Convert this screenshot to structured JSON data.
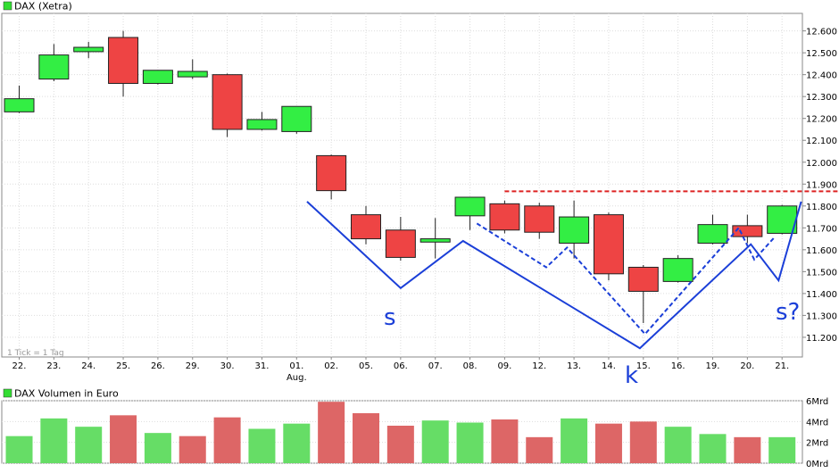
{
  "price_panel": {
    "title": "DAX (Xetra)",
    "note": "1 Tick = 1 Tag",
    "legend_color": "#33dd33"
  },
  "volume_panel": {
    "title": "DAX Volumen in Euro",
    "legend_color": "#33dd33"
  },
  "annotations": {
    "left_shoulder": "s",
    "head": "k",
    "right_shoulder": "s?"
  },
  "colors": {
    "up": "#33ee44",
    "down": "#ee4444",
    "volume_up": "#66dd66",
    "volume_down": "#dd6666",
    "pattern_line": "#1b3fd8",
    "resistance_line": "#dd2222"
  },
  "chart_data": [
    {
      "type": "candlestick",
      "title": "DAX (Xetra)",
      "x_tick_labels": [
        "22.",
        "23.",
        "24.",
        "25.",
        "26.",
        "29.",
        "30.",
        "31.",
        "01.",
        "02.",
        "05.",
        "06.",
        "07.",
        "08.",
        "09.",
        "12.",
        "13.",
        "14.",
        "15.",
        "16.",
        "19.",
        "20.",
        "21."
      ],
      "x_month_label": {
        "index": 8,
        "text": "Aug."
      },
      "y_ticks": [
        11200,
        11300,
        11400,
        11500,
        11600,
        11700,
        11800,
        11900,
        12000,
        12100,
        12200,
        12300,
        12400,
        12500,
        12600
      ],
      "y_tick_labels": [
        "11.200",
        "11.300",
        "11.400",
        "11.500",
        "11.600",
        "11.700",
        "11.800",
        "11.900",
        "12.000",
        "12.100",
        "12.200",
        "12.300",
        "12.400",
        "12.500",
        "12.600"
      ],
      "ylim": [
        11110,
        12680
      ],
      "grid": true,
      "candles": [
        {
          "o": 12230,
          "h": 12350,
          "l": 12225,
          "c": 12290
        },
        {
          "o": 12380,
          "h": 12540,
          "l": 12370,
          "c": 12490
        },
        {
          "o": 12505,
          "h": 12550,
          "l": 12475,
          "c": 12525
        },
        {
          "o": 12570,
          "h": 12600,
          "l": 12300,
          "c": 12360
        },
        {
          "o": 12360,
          "h": 12420,
          "l": 12355,
          "c": 12420
        },
        {
          "o": 12390,
          "h": 12470,
          "l": 12380,
          "c": 12415
        },
        {
          "o": 12400,
          "h": 12405,
          "l": 12115,
          "c": 12150
        },
        {
          "o": 12150,
          "h": 12230,
          "l": 12145,
          "c": 12195
        },
        {
          "o": 12140,
          "h": 12255,
          "l": 12130,
          "c": 12255
        },
        {
          "o": 12030,
          "h": 12035,
          "l": 11830,
          "c": 11870
        },
        {
          "o": 11760,
          "h": 11800,
          "l": 11625,
          "c": 11650
        },
        {
          "o": 11690,
          "h": 11750,
          "l": 11550,
          "c": 11565
        },
        {
          "o": 11635,
          "h": 11745,
          "l": 11560,
          "c": 11650
        },
        {
          "o": 11755,
          "h": 11840,
          "l": 11690,
          "c": 11840
        },
        {
          "o": 11810,
          "h": 11825,
          "l": 11675,
          "c": 11690
        },
        {
          "o": 11800,
          "h": 11815,
          "l": 11650,
          "c": 11680
        },
        {
          "o": 11630,
          "h": 11825,
          "l": 11560,
          "c": 11750
        },
        {
          "o": 11760,
          "h": 11770,
          "l": 11460,
          "c": 11490
        },
        {
          "o": 11520,
          "h": 11530,
          "l": 11265,
          "c": 11410
        },
        {
          "o": 11455,
          "h": 11575,
          "l": 11450,
          "c": 11560
        },
        {
          "o": 11630,
          "h": 11760,
          "l": 11625,
          "c": 11715
        },
        {
          "o": 11710,
          "h": 11760,
          "l": 11630,
          "c": 11660
        },
        {
          "o": 11675,
          "h": 11805,
          "l": 11670,
          "c": 11800
        }
      ],
      "resistance": {
        "value": 11867,
        "from_index": 14
      },
      "head_shoulders_solid": [
        {
          "i": 8.3,
          "v": 11820
        },
        {
          "i": 11,
          "v": 11425
        },
        {
          "i": 12.8,
          "v": 11640
        },
        {
          "i": 17.9,
          "v": 11150
        },
        {
          "i": 21.1,
          "v": 11625
        },
        {
          "i": 21.9,
          "v": 11460
        },
        {
          "i": 22.55,
          "v": 11820
        }
      ],
      "head_shoulders_dashed": [
        {
          "i": 13.2,
          "v": 11720
        },
        {
          "i": 15.2,
          "v": 11520
        },
        {
          "i": 15.8,
          "v": 11610
        },
        {
          "i": 18.05,
          "v": 11215
        },
        {
          "i": 20.75,
          "v": 11700
        },
        {
          "i": 21.2,
          "v": 11555
        },
        {
          "i": 21.8,
          "v": 11660
        }
      ]
    },
    {
      "type": "bar",
      "title": "DAX Volumen in Euro",
      "ylabel": "",
      "y_tick_labels": [
        "6Mrd",
        "4Mrd",
        "2Mrd",
        "0Mrd"
      ],
      "y_ticks": [
        6,
        4,
        2,
        0
      ],
      "ylim": [
        0,
        6
      ],
      "values": [
        2.6,
        4.3,
        3.5,
        4.6,
        2.9,
        2.6,
        4.4,
        3.3,
        3.8,
        5.9,
        4.8,
        3.6,
        4.1,
        3.9,
        4.2,
        2.5,
        4.3,
        3.8,
        4.0,
        3.5,
        2.8,
        2.5,
        2.5
      ],
      "direction": [
        "up",
        "up",
        "up",
        "down",
        "up",
        "down",
        "down",
        "up",
        "up",
        "down",
        "down",
        "down",
        "up",
        "up",
        "down",
        "down",
        "up",
        "down",
        "down",
        "up",
        "up",
        "down",
        "up"
      ]
    }
  ]
}
